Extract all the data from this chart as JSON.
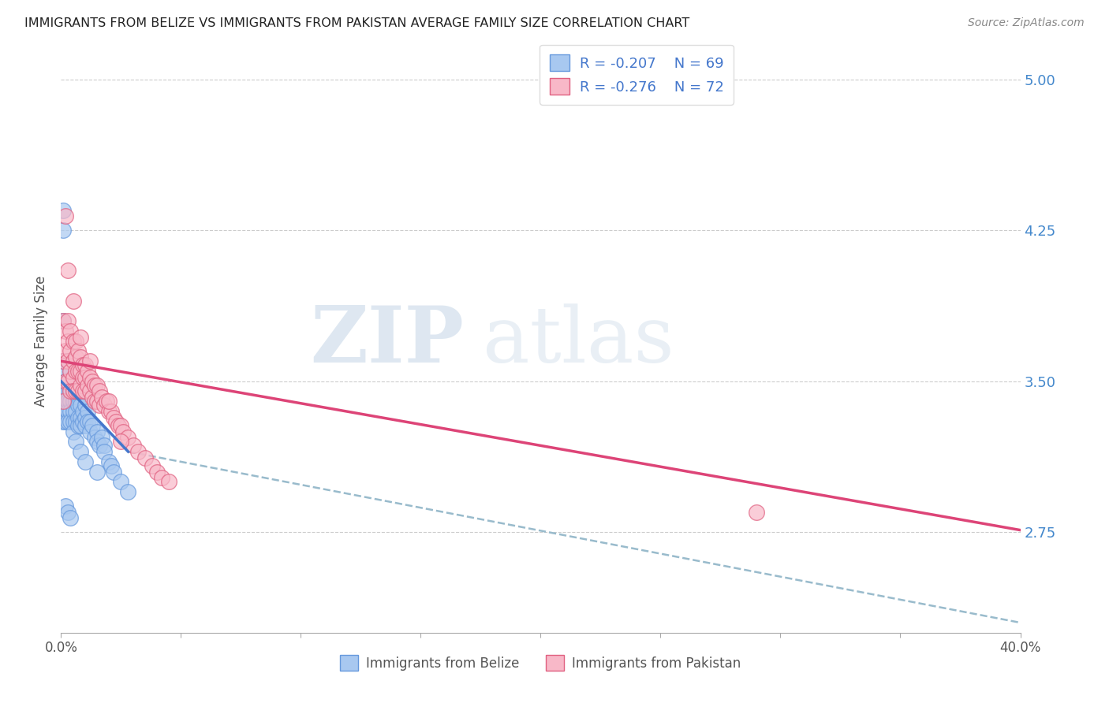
{
  "title": "IMMIGRANTS FROM BELIZE VS IMMIGRANTS FROM PAKISTAN AVERAGE FAMILY SIZE CORRELATION CHART",
  "source": "Source: ZipAtlas.com",
  "ylabel": "Average Family Size",
  "xlim": [
    0.0,
    0.4
  ],
  "ylim": [
    2.25,
    5.15
  ],
  "x_tick_positions": [
    0.0,
    0.05,
    0.1,
    0.15,
    0.2,
    0.25,
    0.3,
    0.35,
    0.4
  ],
  "x_tick_labels": [
    "0.0%",
    "",
    "",
    "",
    "",
    "",
    "",
    "",
    "40.0%"
  ],
  "y_ticks_right": [
    2.75,
    3.5,
    4.25,
    5.0
  ],
  "legend_R_belize": "-0.207",
  "legend_N_belize": "69",
  "legend_R_pakistan": "-0.276",
  "legend_N_pakistan": "72",
  "color_belize_fill": "#a8c8f0",
  "color_belize_edge": "#6699dd",
  "color_pakistan_fill": "#f8b8c8",
  "color_pakistan_edge": "#e06080",
  "color_belize_line": "#4477cc",
  "color_pakistan_line": "#dd4477",
  "color_dashed": "#99bbcc",
  "watermark_zip": "ZIP",
  "watermark_atlas": "atlas",
  "belize_x": [
    0.001,
    0.001,
    0.001,
    0.001,
    0.002,
    0.002,
    0.002,
    0.002,
    0.002,
    0.002,
    0.003,
    0.003,
    0.003,
    0.003,
    0.003,
    0.003,
    0.004,
    0.004,
    0.004,
    0.004,
    0.004,
    0.005,
    0.005,
    0.005,
    0.005,
    0.005,
    0.005,
    0.006,
    0.006,
    0.006,
    0.006,
    0.007,
    0.007,
    0.007,
    0.007,
    0.008,
    0.008,
    0.008,
    0.009,
    0.009,
    0.01,
    0.01,
    0.01,
    0.011,
    0.011,
    0.012,
    0.012,
    0.013,
    0.014,
    0.015,
    0.015,
    0.016,
    0.017,
    0.018,
    0.018,
    0.02,
    0.021,
    0.022,
    0.025,
    0.028,
    0.001,
    0.001,
    0.002,
    0.003,
    0.004,
    0.006,
    0.008,
    0.01,
    0.015
  ],
  "belize_y": [
    3.8,
    3.6,
    3.45,
    3.3,
    3.55,
    3.5,
    3.45,
    3.4,
    3.35,
    3.3,
    3.6,
    3.5,
    3.45,
    3.4,
    3.35,
    3.3,
    3.55,
    3.45,
    3.4,
    3.35,
    3.3,
    3.5,
    3.45,
    3.4,
    3.35,
    3.3,
    3.25,
    3.45,
    3.4,
    3.35,
    3.3,
    3.42,
    3.38,
    3.32,
    3.28,
    3.38,
    3.32,
    3.28,
    3.35,
    3.3,
    3.38,
    3.32,
    3.28,
    3.35,
    3.3,
    3.3,
    3.25,
    3.28,
    3.22,
    3.25,
    3.2,
    3.18,
    3.22,
    3.18,
    3.15,
    3.1,
    3.08,
    3.05,
    3.0,
    2.95,
    4.35,
    4.25,
    2.88,
    2.85,
    2.82,
    3.2,
    3.15,
    3.1,
    3.05
  ],
  "pakistan_x": [
    0.001,
    0.001,
    0.001,
    0.002,
    0.002,
    0.002,
    0.003,
    0.003,
    0.003,
    0.003,
    0.004,
    0.004,
    0.004,
    0.004,
    0.005,
    0.005,
    0.005,
    0.005,
    0.006,
    0.006,
    0.006,
    0.006,
    0.007,
    0.007,
    0.007,
    0.008,
    0.008,
    0.008,
    0.009,
    0.009,
    0.009,
    0.01,
    0.01,
    0.01,
    0.011,
    0.011,
    0.012,
    0.012,
    0.013,
    0.013,
    0.014,
    0.014,
    0.015,
    0.015,
    0.016,
    0.016,
    0.017,
    0.018,
    0.019,
    0.02,
    0.021,
    0.022,
    0.023,
    0.024,
    0.025,
    0.026,
    0.028,
    0.03,
    0.032,
    0.035,
    0.038,
    0.04,
    0.042,
    0.045,
    0.002,
    0.003,
    0.005,
    0.008,
    0.012,
    0.02,
    0.025,
    0.29
  ],
  "pakistan_y": [
    3.8,
    3.6,
    3.4,
    3.75,
    3.65,
    3.5,
    3.8,
    3.7,
    3.6,
    3.5,
    3.75,
    3.65,
    3.55,
    3.45,
    3.7,
    3.6,
    3.52,
    3.45,
    3.7,
    3.62,
    3.55,
    3.45,
    3.65,
    3.55,
    3.45,
    3.62,
    3.55,
    3.48,
    3.58,
    3.52,
    3.45,
    3.58,
    3.52,
    3.45,
    3.55,
    3.48,
    3.52,
    3.45,
    3.5,
    3.42,
    3.48,
    3.4,
    3.48,
    3.4,
    3.45,
    3.38,
    3.42,
    3.38,
    3.4,
    3.35,
    3.35,
    3.32,
    3.3,
    3.28,
    3.28,
    3.25,
    3.22,
    3.18,
    3.15,
    3.12,
    3.08,
    3.05,
    3.02,
    3.0,
    4.32,
    4.05,
    3.9,
    3.72,
    3.6,
    3.4,
    3.2,
    2.85
  ],
  "belize_line_x0": 0.0,
  "belize_line_x1": 0.028,
  "belize_line_y0": 3.5,
  "belize_line_y1": 3.15,
  "pakistan_line_x0": 0.0,
  "pakistan_line_x1": 0.4,
  "pakistan_line_y0": 3.6,
  "pakistan_line_y1": 2.76,
  "dashed_line_x0": 0.028,
  "dashed_line_x1": 0.4,
  "dashed_line_y0": 3.15,
  "dashed_line_y1": 2.3
}
